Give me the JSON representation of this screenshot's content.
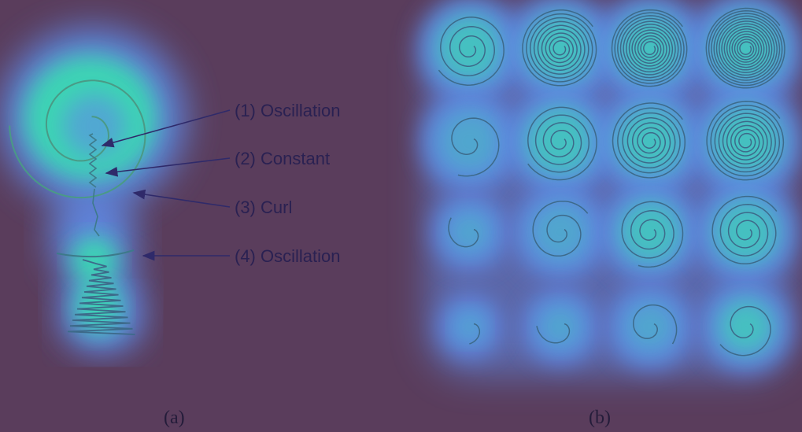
{
  "colors": {
    "background": "#5a3d5c",
    "glow_outer": "#5f8ae6",
    "glow_inner": "#33f0a8",
    "stroke": "#3d6a8a",
    "arrow": "#2f2a6a",
    "label": "#2a2152"
  },
  "panel_a": {
    "caption": "(a)",
    "annotations": [
      {
        "label": "(1) Oscillation"
      },
      {
        "label": "(2) Constant"
      },
      {
        "label": "(3) Curl"
      },
      {
        "label": "(4) Oscillation"
      }
    ]
  },
  "panel_b": {
    "caption": "(b)",
    "grid_rows": 4,
    "grid_cols": 4
  }
}
